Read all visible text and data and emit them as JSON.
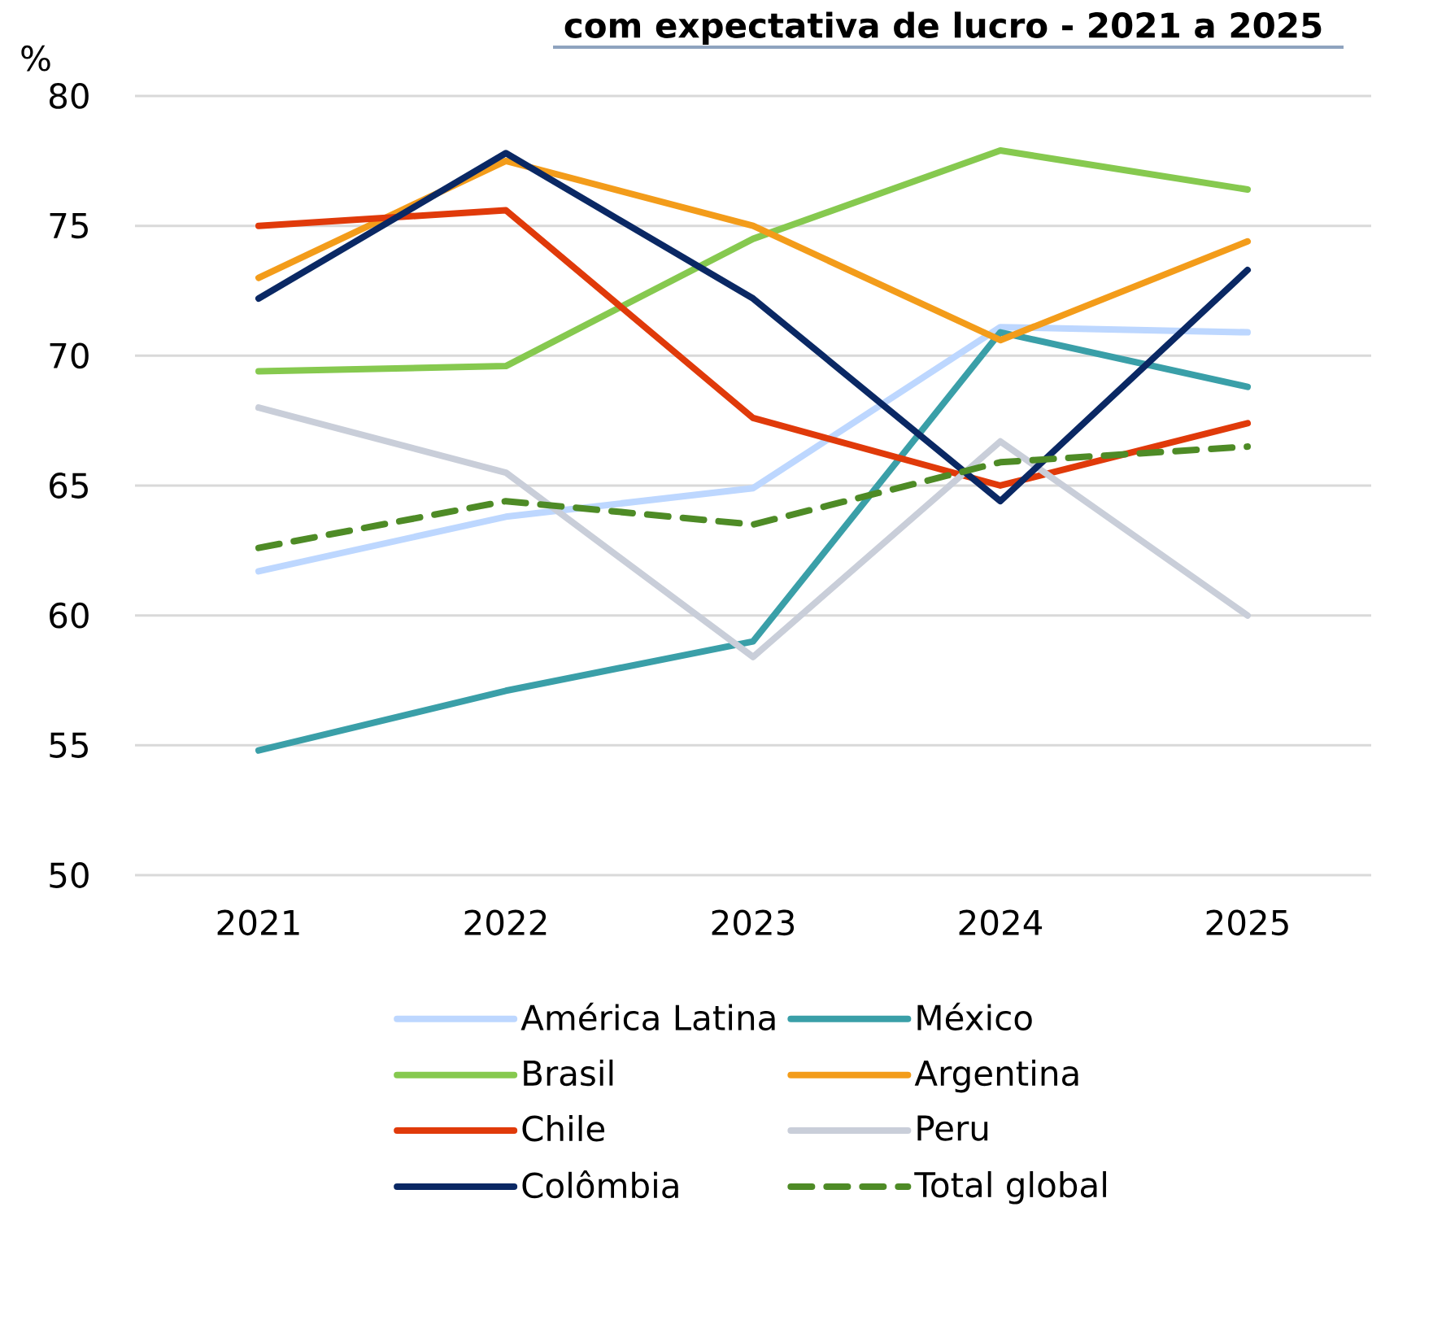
{
  "chart_data": {
    "type": "line",
    "title": "com expectativa de lucro - 2021 a 2025",
    "ylabel": "%",
    "categories": [
      "2021",
      "2022",
      "2023",
      "2024",
      "2025"
    ],
    "series": [
      {
        "name": "América Latina",
        "color": "#bdd7ff",
        "values": [
          61.7,
          63.8,
          64.9,
          71.1,
          70.9
        ]
      },
      {
        "name": "México",
        "color": "#3a9fa8",
        "values": [
          54.8,
          57.1,
          59.0,
          70.9,
          68.8
        ]
      },
      {
        "name": "Brasil",
        "color": "#86c94f",
        "values": [
          69.4,
          69.6,
          74.5,
          77.9,
          76.4
        ]
      },
      {
        "name": "Argentina",
        "color": "#f39c1a",
        "values": [
          73.0,
          77.5,
          75.0,
          70.6,
          74.4
        ]
      },
      {
        "name": "Chile",
        "color": "#e03a0a",
        "values": [
          75.0,
          75.6,
          67.6,
          65.0,
          67.4
        ]
      },
      {
        "name": "Peru",
        "color": "#c9ced9",
        "values": [
          68.0,
          65.5,
          58.4,
          66.7,
          60.0
        ]
      },
      {
        "name": "Colômbia",
        "color": "#0a2864",
        "values": [
          72.2,
          77.8,
          72.2,
          64.4,
          73.3
        ]
      },
      {
        "name": "Total global",
        "color": "#4e8b26",
        "values": [
          62.6,
          64.4,
          63.5,
          65.9,
          66.5
        ],
        "line_style": "dashed"
      }
    ],
    "ylim": [
      50,
      80
    ],
    "yticks": [
      50,
      55,
      60,
      65,
      70,
      75,
      80
    ],
    "grid": "y",
    "legend": "bottom"
  }
}
